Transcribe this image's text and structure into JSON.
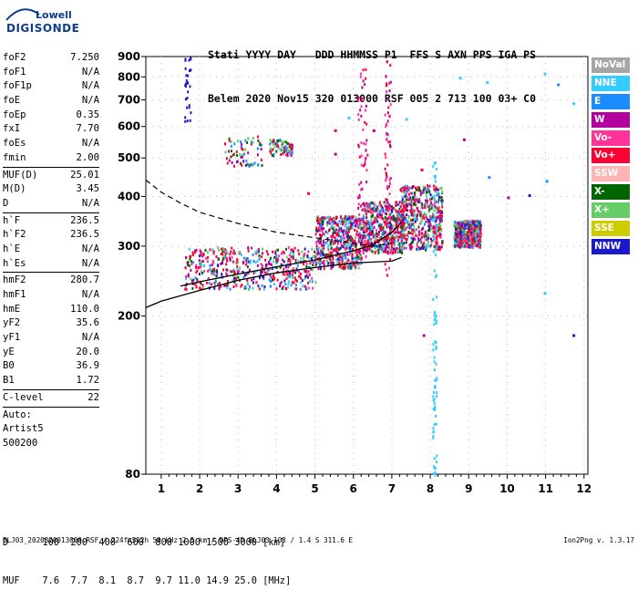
{
  "logo": {
    "line1": "Lowell",
    "line2": "DIGISONDE"
  },
  "header": {
    "line1": "Stati YYYY DAY   DDD HHMMSS P1  FFS S AXN PPS IGA PS",
    "line2": "Belem 2020 Nov15 320 013000 RSF 005 2 713 100 03+ C0"
  },
  "params": {
    "group1": [
      {
        "name": "foF2",
        "value": "7.250"
      },
      {
        "name": "foF1",
        "value": "N/A"
      },
      {
        "name": "foF1p",
        "value": "N/A"
      },
      {
        "name": "foE",
        "value": "N/A"
      },
      {
        "name": "foEp",
        "value": "0.35"
      },
      {
        "name": "fxI",
        "value": "7.70"
      },
      {
        "name": "foEs",
        "value": "N/A"
      },
      {
        "name": "fmin",
        "value": "2.00"
      }
    ],
    "group2": [
      {
        "name": "MUF(D)",
        "value": "25.01"
      },
      {
        "name": "M(D)",
        "value": "3.45"
      },
      {
        "name": "D",
        "value": "N/A"
      }
    ],
    "group3": [
      {
        "name": "h`F",
        "value": "236.5"
      },
      {
        "name": "h`F2",
        "value": "236.5"
      },
      {
        "name": "h`E",
        "value": "N/A"
      },
      {
        "name": "h`Es",
        "value": "N/A"
      }
    ],
    "group4": [
      {
        "name": "hmF2",
        "value": "280.7"
      },
      {
        "name": "hmF1",
        "value": "N/A"
      },
      {
        "name": "hmE",
        "value": "110.0"
      },
      {
        "name": "yF2",
        "value": "35.6"
      },
      {
        "name": "yF1",
        "value": "N/A"
      },
      {
        "name": "yE",
        "value": "20.0"
      },
      {
        "name": "B0",
        "value": "36.9"
      },
      {
        "name": "B1",
        "value": "1.72"
      }
    ],
    "group5": [
      {
        "name": "C-level",
        "value": "22"
      }
    ],
    "auto": [
      "Auto:",
      "Artist5",
      "500200"
    ]
  },
  "legend": [
    {
      "label": "NoVal",
      "color": "#a6a6a6"
    },
    {
      "label": "NNE",
      "color": "#33ccff"
    },
    {
      "label": "E",
      "color": "#1a8cff"
    },
    {
      "label": "W",
      "color": "#b3009e"
    },
    {
      "label": "Vo-",
      "color": "#ff3399"
    },
    {
      "label": "Vo+",
      "color": "#ff0033"
    },
    {
      "label": "SSW",
      "color": "#ffb3b3"
    },
    {
      "label": "X-",
      "color": "#006600"
    },
    {
      "label": "X+",
      "color": "#66cc66"
    },
    {
      "label": "SSE",
      "color": "#cccc00"
    },
    {
      "label": "NNW",
      "color": "#1a1acc"
    }
  ],
  "chart_data": {
    "type": "scatter",
    "xlabel": "",
    "ylabel": "",
    "xlim": [
      0.6,
      12.1
    ],
    "ylim": [
      80,
      900
    ],
    "y_scale": "log",
    "x_ticks": [
      "1",
      "2",
      "3",
      "4",
      "5",
      "6",
      "7",
      "8",
      "9",
      "10",
      "11",
      "12"
    ],
    "y_ticks": [
      "80",
      "200",
      "300",
      "400",
      "500",
      "600",
      "700",
      "800",
      "900"
    ],
    "profile_curve": [
      [
        0.6,
        210
      ],
      [
        1,
        218
      ],
      [
        2,
        232
      ],
      [
        3,
        246
      ],
      [
        4,
        257
      ],
      [
        5,
        265
      ],
      [
        6,
        272
      ],
      [
        7,
        275
      ],
      [
        7.25,
        281
      ]
    ],
    "ordinary_trace": [
      [
        1.5,
        238
      ],
      [
        2,
        244
      ],
      [
        3,
        255
      ],
      [
        4,
        266
      ],
      [
        5,
        277
      ],
      [
        6,
        292
      ],
      [
        6.5,
        302
      ],
      [
        7,
        325
      ],
      [
        7.25,
        345
      ]
    ],
    "extraordinary_dashed": [
      [
        0.6,
        440
      ],
      [
        1,
        410
      ],
      [
        1.5,
        385
      ],
      [
        2,
        365
      ],
      [
        3,
        342
      ],
      [
        4,
        325
      ],
      [
        5,
        315
      ],
      [
        6,
        305
      ],
      [
        6.5,
        300
      ],
      [
        7,
        305
      ]
    ],
    "echo_clusters": [
      {
        "x_range": [
          1.6,
          5.0
        ],
        "y_range": [
          235,
          300
        ],
        "mode": "main"
      },
      {
        "x_range": [
          5.0,
          6.2
        ],
        "y_range": [
          265,
          360
        ],
        "mode": "main"
      },
      {
        "x_range": [
          6.2,
          7.3
        ],
        "y_range": [
          290,
          390
        ],
        "mode": "main"
      },
      {
        "x_range": [
          7.2,
          8.3
        ],
        "y_range": [
          295,
          430
        ],
        "mode": "main"
      },
      {
        "x_range": [
          8.6,
          9.3
        ],
        "y_range": [
          300,
          350
        ],
        "mode": "main"
      },
      {
        "x_range": [
          2.6,
          3.6
        ],
        "y_range": [
          480,
          570
        ],
        "mode": "multi"
      },
      {
        "x_range": [
          3.8,
          4.4
        ],
        "y_range": [
          510,
          560
        ],
        "mode": "multi"
      },
      {
        "x_range": [
          1.6,
          1.75
        ],
        "y_range": [
          620,
          900
        ],
        "mode": "nnw"
      },
      {
        "x_range": [
          8.05,
          8.15
        ],
        "y_range": [
          80,
          500
        ],
        "mode": "nne_vertical"
      },
      {
        "x_range": [
          6.8,
          6.95
        ],
        "y_range": [
          250,
          890
        ],
        "mode": "vertical"
      },
      {
        "x_range": [
          6.1,
          6.35
        ],
        "y_range": [
          280,
          850
        ],
        "mode": "vertical"
      }
    ]
  },
  "dmuf": {
    "d_label": "D",
    "d_values": "100  200  400  600  800 1000 1500 3000 [km]",
    "muf_label": "MUF",
    "muf_values": "7.6  7.7  8.1  8.7  9.7 11.0 14.9 25.0 [MHz]"
  },
  "footer": {
    "left": "BLJ03_2020320013000.RSF / 224fx512h 50 kHz 2.5 km / DPS-4D BLJ03 103 / 1.4 S 311.6 E",
    "right": "Ion2Png v. 1.3.17"
  }
}
